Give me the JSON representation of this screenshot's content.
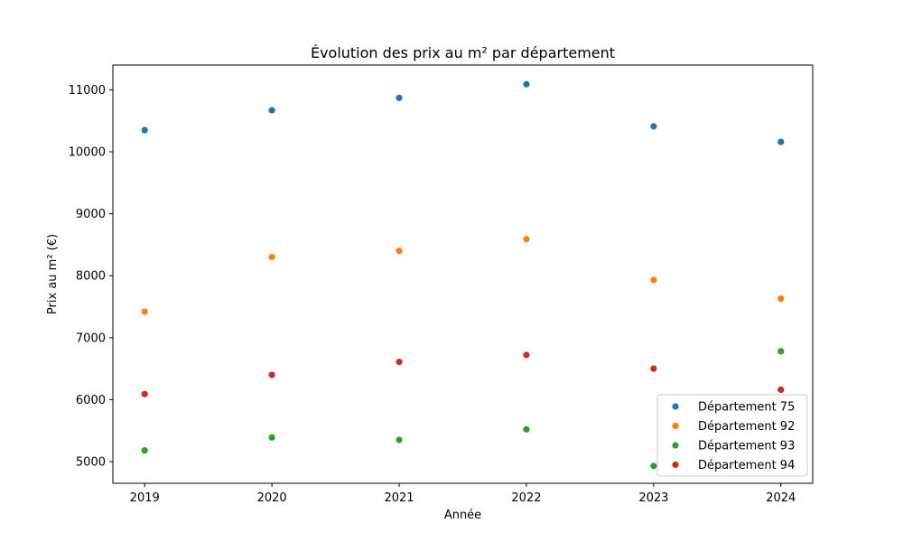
{
  "chart_data": {
    "type": "scatter",
    "title": "Évolution des prix au m² par département",
    "xlabel": "Année",
    "ylabel": "Prix au m² (€)",
    "x": [
      2019,
      2020,
      2021,
      2022,
      2023,
      2024
    ],
    "xticks": [
      "2019",
      "2020",
      "2021",
      "2022",
      "2023",
      "2024"
    ],
    "yticks": [
      5000,
      6000,
      7000,
      8000,
      9000,
      10000,
      11000
    ],
    "xlim": [
      2018.75,
      2024.25
    ],
    "ylim": [
      4650,
      11400
    ],
    "grid": false,
    "legend_position": "lower-right",
    "series": [
      {
        "name": "Département 75",
        "color": "#1f77b4",
        "values": [
          10350,
          10670,
          10870,
          11090,
          10410,
          10160
        ]
      },
      {
        "name": "Département 92",
        "color": "#ff7f0e",
        "values": [
          7420,
          8300,
          8400,
          8590,
          7930,
          7630
        ]
      },
      {
        "name": "Département 93",
        "color": "#2ca02c",
        "values": [
          5180,
          5390,
          5350,
          5520,
          4930,
          6780
        ]
      },
      {
        "name": "Département 94",
        "color": "#d62728",
        "values": [
          6090,
          6400,
          6610,
          6720,
          6500,
          6160
        ]
      }
    ]
  }
}
